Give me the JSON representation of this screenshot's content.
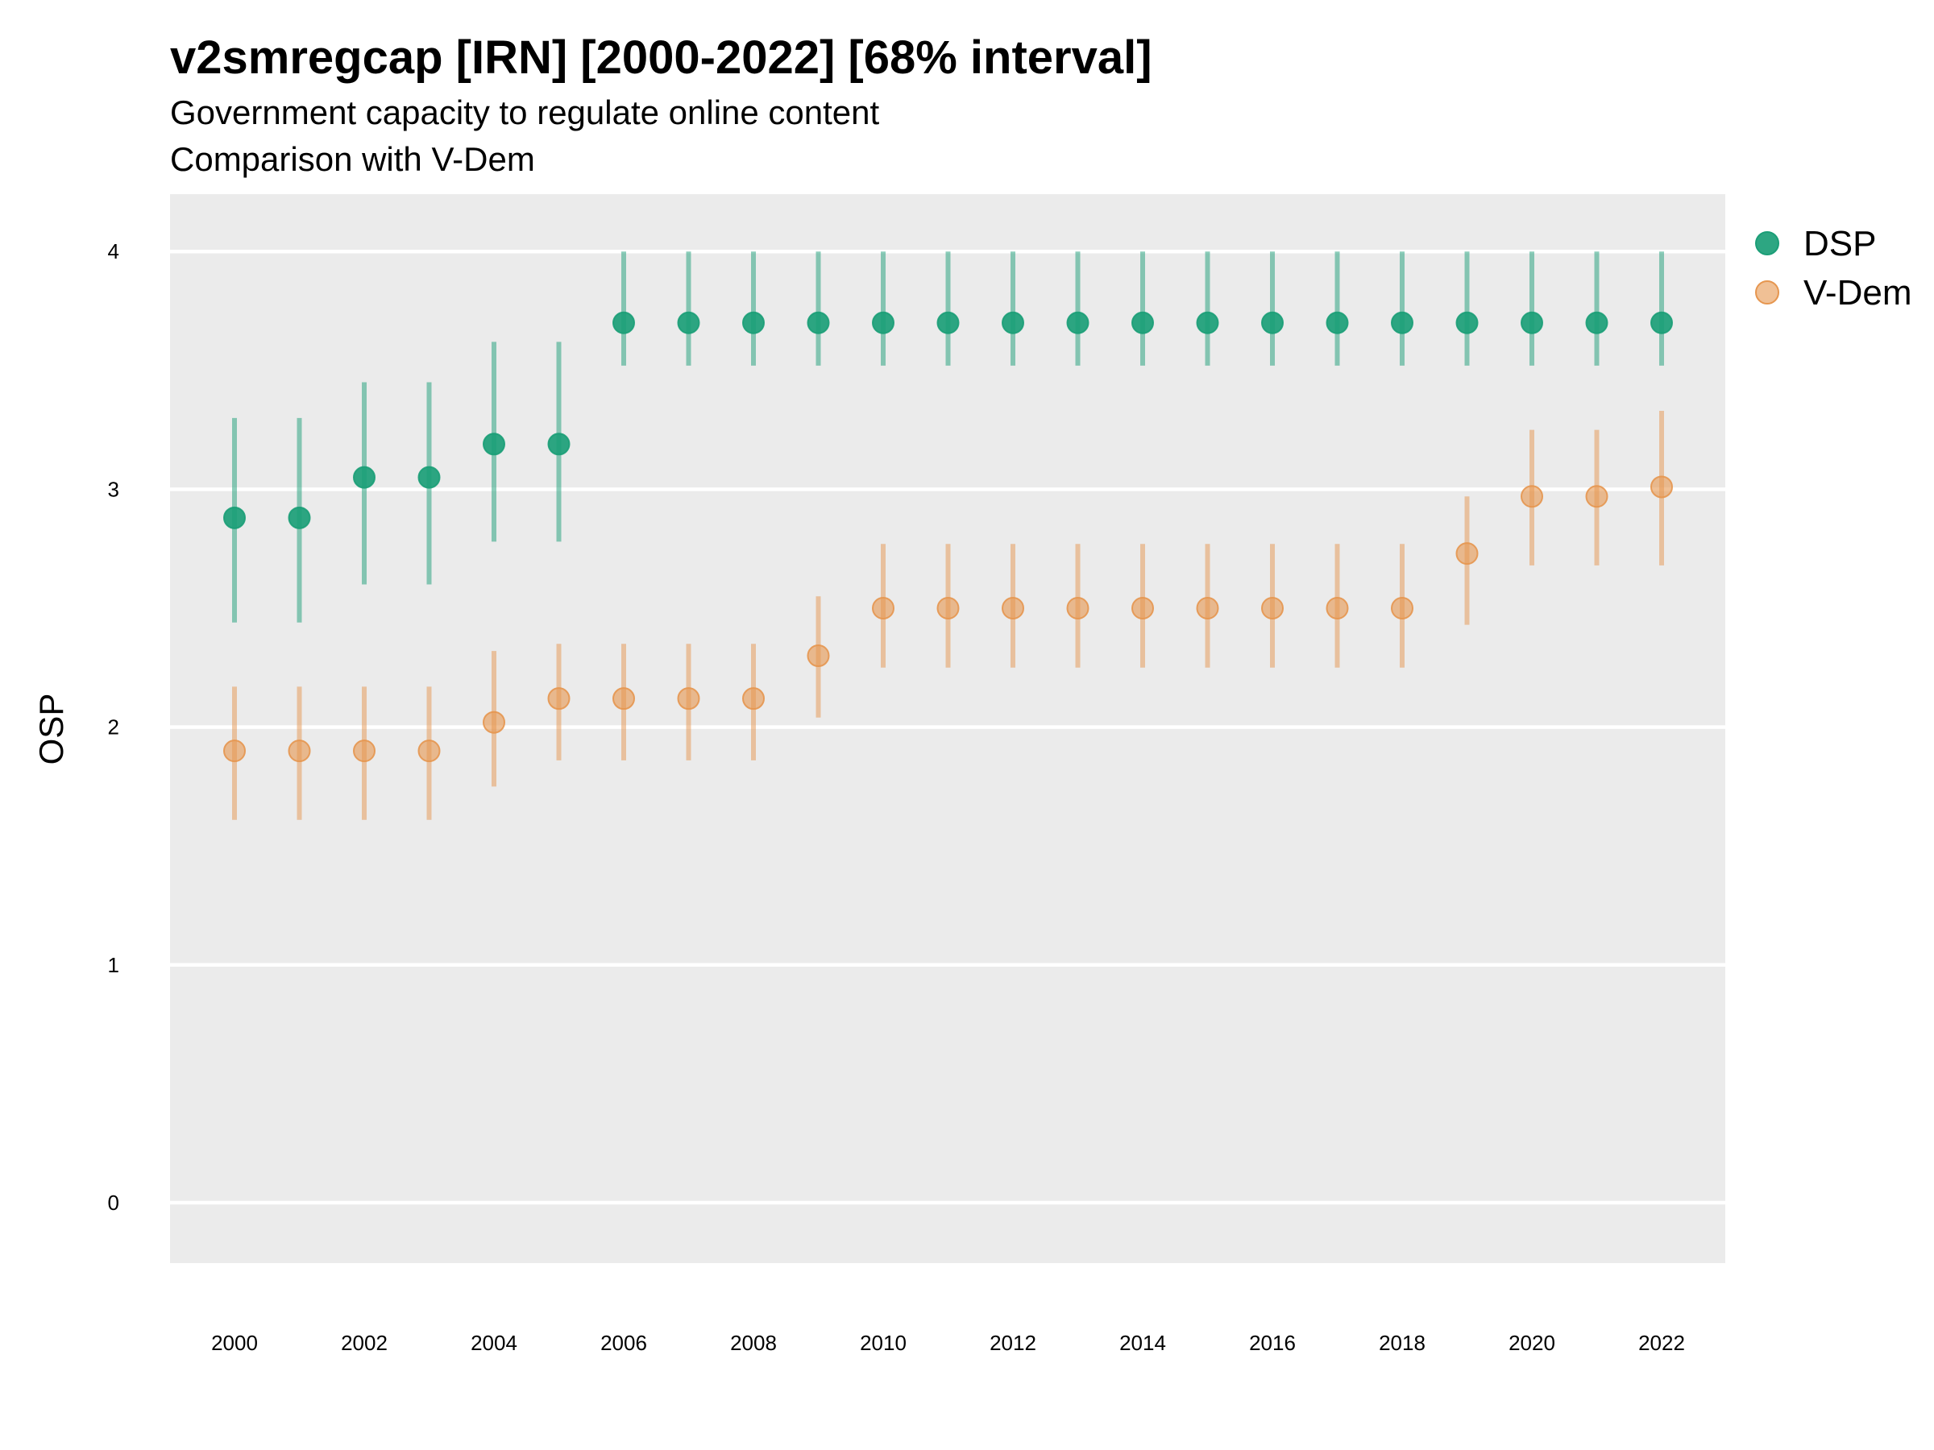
{
  "title": "v2smregcap [IRN] [2000-2022] [68% interval]",
  "subtitle1": "Government capacity to regulate online content",
  "subtitle2": "Comparison with V-Dem",
  "colors": {
    "panel": "#EBEBEB",
    "grid": "#FFFFFF",
    "dsp": "#1B9E77",
    "vdem": "#E6964F"
  },
  "chart_data": {
    "type": "scatter",
    "title": "v2smregcap [IRN] [2000-2022] [68% interval]",
    "subtitle": [
      "Government capacity to regulate online content",
      "Comparison with V-Dem"
    ],
    "xlabel": "",
    "ylabel": "OSP",
    "ylim": [
      -0.25,
      4.25
    ],
    "xlim": [
      1999,
      2023
    ],
    "yticks": [
      0,
      1,
      2,
      3,
      4
    ],
    "xticks": [
      2000,
      2002,
      2004,
      2006,
      2008,
      2010,
      2012,
      2014,
      2016,
      2018,
      2020,
      2022
    ],
    "grid": true,
    "legend_position": "right",
    "x": [
      2000,
      2001,
      2002,
      2003,
      2004,
      2005,
      2006,
      2007,
      2008,
      2009,
      2010,
      2011,
      2012,
      2013,
      2014,
      2015,
      2016,
      2017,
      2018,
      2019,
      2020,
      2021,
      2022
    ],
    "series": [
      {
        "name": "DSP",
        "color": "#1B9E77",
        "values": [
          2.88,
          2.88,
          3.05,
          3.05,
          3.19,
          3.19,
          3.7,
          3.7,
          3.7,
          3.7,
          3.7,
          3.7,
          3.7,
          3.7,
          3.7,
          3.7,
          3.7,
          3.7,
          3.7,
          3.7,
          3.7,
          3.7,
          3.7
        ],
        "lower": [
          2.44,
          2.44,
          2.6,
          2.6,
          2.78,
          2.78,
          3.52,
          3.52,
          3.52,
          3.52,
          3.52,
          3.52,
          3.52,
          3.52,
          3.52,
          3.52,
          3.52,
          3.52,
          3.52,
          3.52,
          3.52,
          3.52,
          3.52
        ],
        "upper": [
          3.3,
          3.3,
          3.45,
          3.45,
          3.62,
          3.62,
          4.0,
          4.0,
          4.0,
          4.0,
          4.0,
          4.0,
          4.0,
          4.0,
          4.0,
          4.0,
          4.0,
          4.0,
          4.0,
          4.0,
          4.0,
          4.0,
          4.0
        ]
      },
      {
        "name": "V-Dem",
        "color": "#E6964F",
        "values": [
          1.9,
          1.9,
          1.9,
          1.9,
          2.02,
          2.12,
          2.12,
          2.12,
          2.12,
          2.3,
          2.5,
          2.5,
          2.5,
          2.5,
          2.5,
          2.5,
          2.5,
          2.5,
          2.5,
          2.73,
          2.97,
          2.97,
          3.01
        ],
        "lower": [
          1.61,
          1.61,
          1.61,
          1.61,
          1.75,
          1.86,
          1.86,
          1.86,
          1.86,
          2.04,
          2.25,
          2.25,
          2.25,
          2.25,
          2.25,
          2.25,
          2.25,
          2.25,
          2.25,
          2.43,
          2.68,
          2.68,
          2.68
        ],
        "upper": [
          2.17,
          2.17,
          2.17,
          2.17,
          2.32,
          2.35,
          2.35,
          2.35,
          2.35,
          2.55,
          2.77,
          2.77,
          2.77,
          2.77,
          2.77,
          2.77,
          2.77,
          2.77,
          2.77,
          2.97,
          3.25,
          3.25,
          3.33
        ]
      }
    ]
  }
}
